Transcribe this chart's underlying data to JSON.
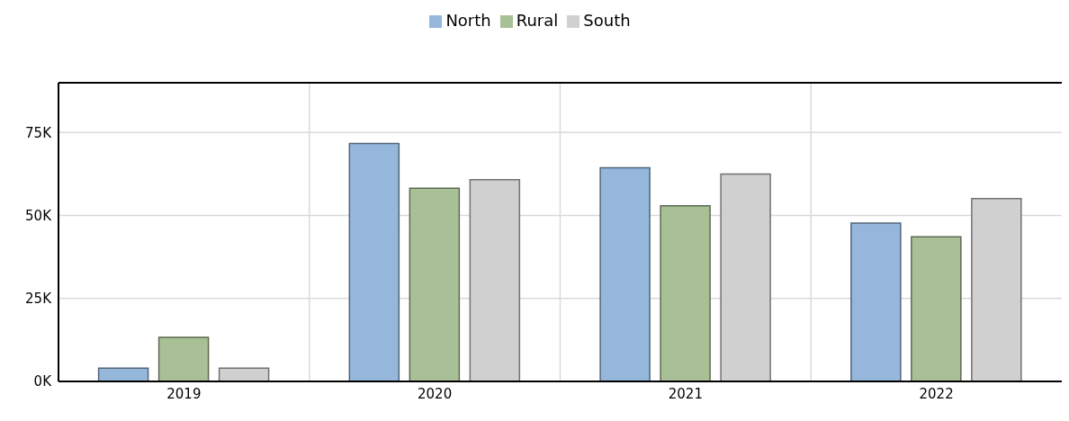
{
  "chart_data": {
    "type": "bar",
    "categories": [
      "2019",
      "2020",
      "2021",
      "2022"
    ],
    "series": [
      {
        "name": "North",
        "color": "#95b7dc",
        "values": [
          4000,
          71700,
          64400,
          47700
        ]
      },
      {
        "name": "Rural",
        "color": "#a9c096",
        "values": [
          13300,
          58200,
          52900,
          43600
        ]
      },
      {
        "name": "South",
        "color": "#d0d0d0",
        "values": [
          4000,
          60800,
          62500,
          55100
        ]
      }
    ],
    "ylim": [
      0,
      90000
    ],
    "yticks": [
      {
        "value": 0,
        "label": "0K"
      },
      {
        "value": 25000,
        "label": "25K"
      },
      {
        "value": 50000,
        "label": "50K"
      },
      {
        "value": 75000,
        "label": "75K"
      }
    ],
    "grid": true,
    "legend": "top"
  }
}
